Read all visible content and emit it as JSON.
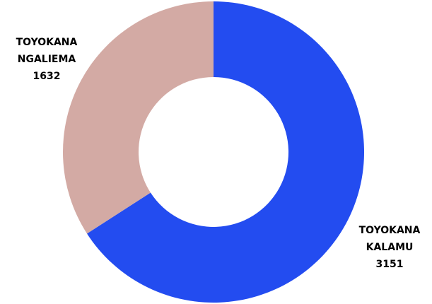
{
  "chart_data": {
    "type": "pie",
    "donut": true,
    "categories": [
      "TOYOKANA KALAMU",
      "TOYOKANA NGALIEMA"
    ],
    "series": [
      {
        "values": [
          3151,
          1632
        ]
      }
    ],
    "slices": [
      {
        "label_lines": [
          "TOYOKANA",
          "KALAMU"
        ],
        "value": 3151,
        "value_label": "3151",
        "color": "#234cf0"
      },
      {
        "label_lines": [
          "TOYOKANA",
          "NGALIEMA"
        ],
        "value": 1632,
        "value_label": "1632",
        "color": "#d3aaa4"
      }
    ],
    "title": "",
    "legend": "none",
    "start_angle": "top",
    "direction": "clockwise"
  }
}
